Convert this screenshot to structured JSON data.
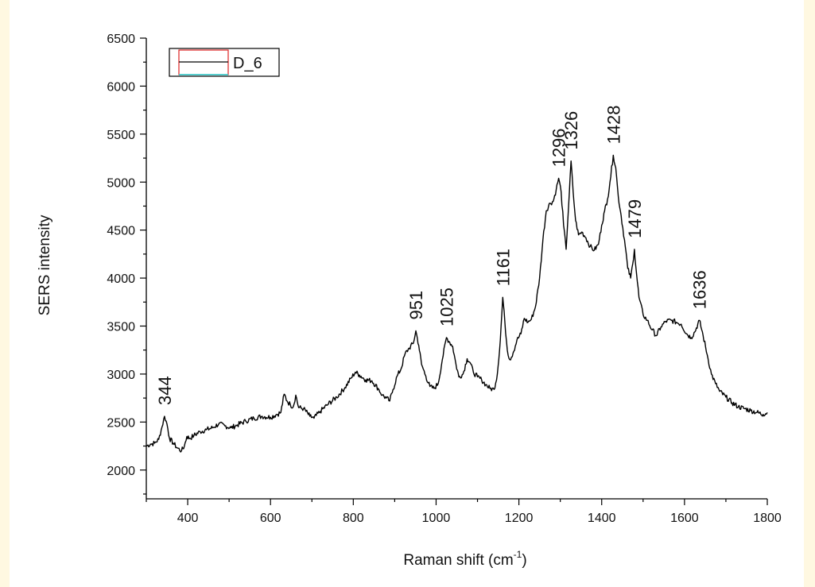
{
  "chart_data": {
    "type": "line",
    "xlabel": "Raman shift (cm",
    "xlabel_sup": "-1",
    "xlabel_end": ")",
    "ylabel": "SERS intensity",
    "xlim": [
      300,
      1800
    ],
    "ylim": [
      1700,
      6500
    ],
    "xticks": [
      "400",
      "600",
      "800",
      "1000",
      "1200",
      "1400",
      "1600",
      "1800"
    ],
    "yticks": [
      "2000",
      "2500",
      "3000",
      "3500",
      "4000",
      "4500",
      "5000",
      "5500",
      "6000",
      "6500"
    ],
    "legend": {
      "position": "top-left",
      "entries": [
        "D_6"
      ]
    },
    "line_color": "#000000",
    "series": [
      {
        "name": "D_6",
        "points": [
          [
            300,
            2250
          ],
          [
            310,
            2270
          ],
          [
            320,
            2280
          ],
          [
            330,
            2320
          ],
          [
            338,
            2450
          ],
          [
            344,
            2560
          ],
          [
            350,
            2480
          ],
          [
            356,
            2330
          ],
          [
            365,
            2280
          ],
          [
            375,
            2230
          ],
          [
            385,
            2200
          ],
          [
            392,
            2250
          ],
          [
            398,
            2350
          ],
          [
            405,
            2330
          ],
          [
            415,
            2360
          ],
          [
            430,
            2400
          ],
          [
            445,
            2420
          ],
          [
            460,
            2440
          ],
          [
            475,
            2480
          ],
          [
            490,
            2460
          ],
          [
            505,
            2440
          ],
          [
            520,
            2470
          ],
          [
            540,
            2510
          ],
          [
            560,
            2540
          ],
          [
            580,
            2560
          ],
          [
            600,
            2550
          ],
          [
            615,
            2580
          ],
          [
            625,
            2600
          ],
          [
            633,
            2790
          ],
          [
            640,
            2720
          ],
          [
            648,
            2680
          ],
          [
            655,
            2660
          ],
          [
            661,
            2780
          ],
          [
            668,
            2650
          ],
          [
            680,
            2640
          ],
          [
            695,
            2560
          ],
          [
            705,
            2540
          ],
          [
            720,
            2610
          ],
          [
            740,
            2690
          ],
          [
            760,
            2760
          ],
          [
            780,
            2860
          ],
          [
            795,
            2960
          ],
          [
            805,
            3020
          ],
          [
            815,
            2990
          ],
          [
            830,
            2940
          ],
          [
            845,
            2930
          ],
          [
            860,
            2850
          ],
          [
            870,
            2780
          ],
          [
            880,
            2750
          ],
          [
            888,
            2720
          ],
          [
            896,
            2840
          ],
          [
            906,
            2980
          ],
          [
            915,
            3050
          ],
          [
            925,
            3210
          ],
          [
            935,
            3270
          ],
          [
            945,
            3320
          ],
          [
            951,
            3450
          ],
          [
            958,
            3300
          ],
          [
            965,
            3100
          ],
          [
            975,
            2980
          ],
          [
            985,
            2870
          ],
          [
            995,
            2850
          ],
          [
            1005,
            2900
          ],
          [
            1015,
            3150
          ],
          [
            1025,
            3380
          ],
          [
            1033,
            3330
          ],
          [
            1040,
            3290
          ],
          [
            1048,
            3100
          ],
          [
            1055,
            2970
          ],
          [
            1065,
            3000
          ],
          [
            1075,
            3160
          ],
          [
            1082,
            3120
          ],
          [
            1090,
            3020
          ],
          [
            1100,
            2970
          ],
          [
            1110,
            2940
          ],
          [
            1120,
            2890
          ],
          [
            1130,
            2850
          ],
          [
            1140,
            2840
          ],
          [
            1148,
            3000
          ],
          [
            1155,
            3350
          ],
          [
            1161,
            3800
          ],
          [
            1166,
            3550
          ],
          [
            1172,
            3250
          ],
          [
            1178,
            3150
          ],
          [
            1186,
            3220
          ],
          [
            1195,
            3350
          ],
          [
            1205,
            3420
          ],
          [
            1213,
            3580
          ],
          [
            1222,
            3540
          ],
          [
            1230,
            3570
          ],
          [
            1240,
            3700
          ],
          [
            1250,
            4000
          ],
          [
            1258,
            4400
          ],
          [
            1266,
            4700
          ],
          [
            1275,
            4780
          ],
          [
            1283,
            4800
          ],
          [
            1290,
            4920
          ],
          [
            1296,
            5040
          ],
          [
            1302,
            4900
          ],
          [
            1308,
            4550
          ],
          [
            1314,
            4300
          ],
          [
            1320,
            4750
          ],
          [
            1326,
            5220
          ],
          [
            1331,
            4900
          ],
          [
            1337,
            4600
          ],
          [
            1344,
            4450
          ],
          [
            1352,
            4480
          ],
          [
            1362,
            4420
          ],
          [
            1372,
            4330
          ],
          [
            1382,
            4290
          ],
          [
            1392,
            4350
          ],
          [
            1400,
            4550
          ],
          [
            1407,
            4700
          ],
          [
            1414,
            4820
          ],
          [
            1420,
            5000
          ],
          [
            1428,
            5280
          ],
          [
            1434,
            5150
          ],
          [
            1440,
            4850
          ],
          [
            1447,
            4650
          ],
          [
            1455,
            4400
          ],
          [
            1463,
            4100
          ],
          [
            1470,
            4000
          ],
          [
            1475,
            4150
          ],
          [
            1479,
            4300
          ],
          [
            1484,
            4050
          ],
          [
            1490,
            3800
          ],
          [
            1500,
            3620
          ],
          [
            1510,
            3560
          ],
          [
            1522,
            3460
          ],
          [
            1532,
            3400
          ],
          [
            1543,
            3490
          ],
          [
            1555,
            3550
          ],
          [
            1568,
            3560
          ],
          [
            1580,
            3540
          ],
          [
            1592,
            3520
          ],
          [
            1605,
            3420
          ],
          [
            1616,
            3380
          ],
          [
            1625,
            3440
          ],
          [
            1636,
            3560
          ],
          [
            1645,
            3400
          ],
          [
            1655,
            3200
          ],
          [
            1665,
            3000
          ],
          [
            1675,
            2900
          ],
          [
            1685,
            2820
          ],
          [
            1700,
            2760
          ],
          [
            1715,
            2700
          ],
          [
            1730,
            2660
          ],
          [
            1745,
            2640
          ],
          [
            1760,
            2620
          ],
          [
            1775,
            2600
          ],
          [
            1790,
            2580
          ],
          [
            1800,
            2600
          ]
        ]
      }
    ],
    "annotations": [
      {
        "text": "344",
        "x": 344,
        "y": 2560
      },
      {
        "text": "951",
        "x": 951,
        "y": 3450
      },
      {
        "text": "1025",
        "x": 1025,
        "y": 3380
      },
      {
        "text": "1161",
        "x": 1161,
        "y": 3800
      },
      {
        "text": "1296",
        "x": 1296,
        "y": 5040
      },
      {
        "text": "1326",
        "x": 1326,
        "y": 5220
      },
      {
        "text": "1428",
        "x": 1428,
        "y": 5280
      },
      {
        "text": "1479",
        "x": 1479,
        "y": 4300
      },
      {
        "text": "1636",
        "x": 1636,
        "y": 3560
      }
    ]
  }
}
